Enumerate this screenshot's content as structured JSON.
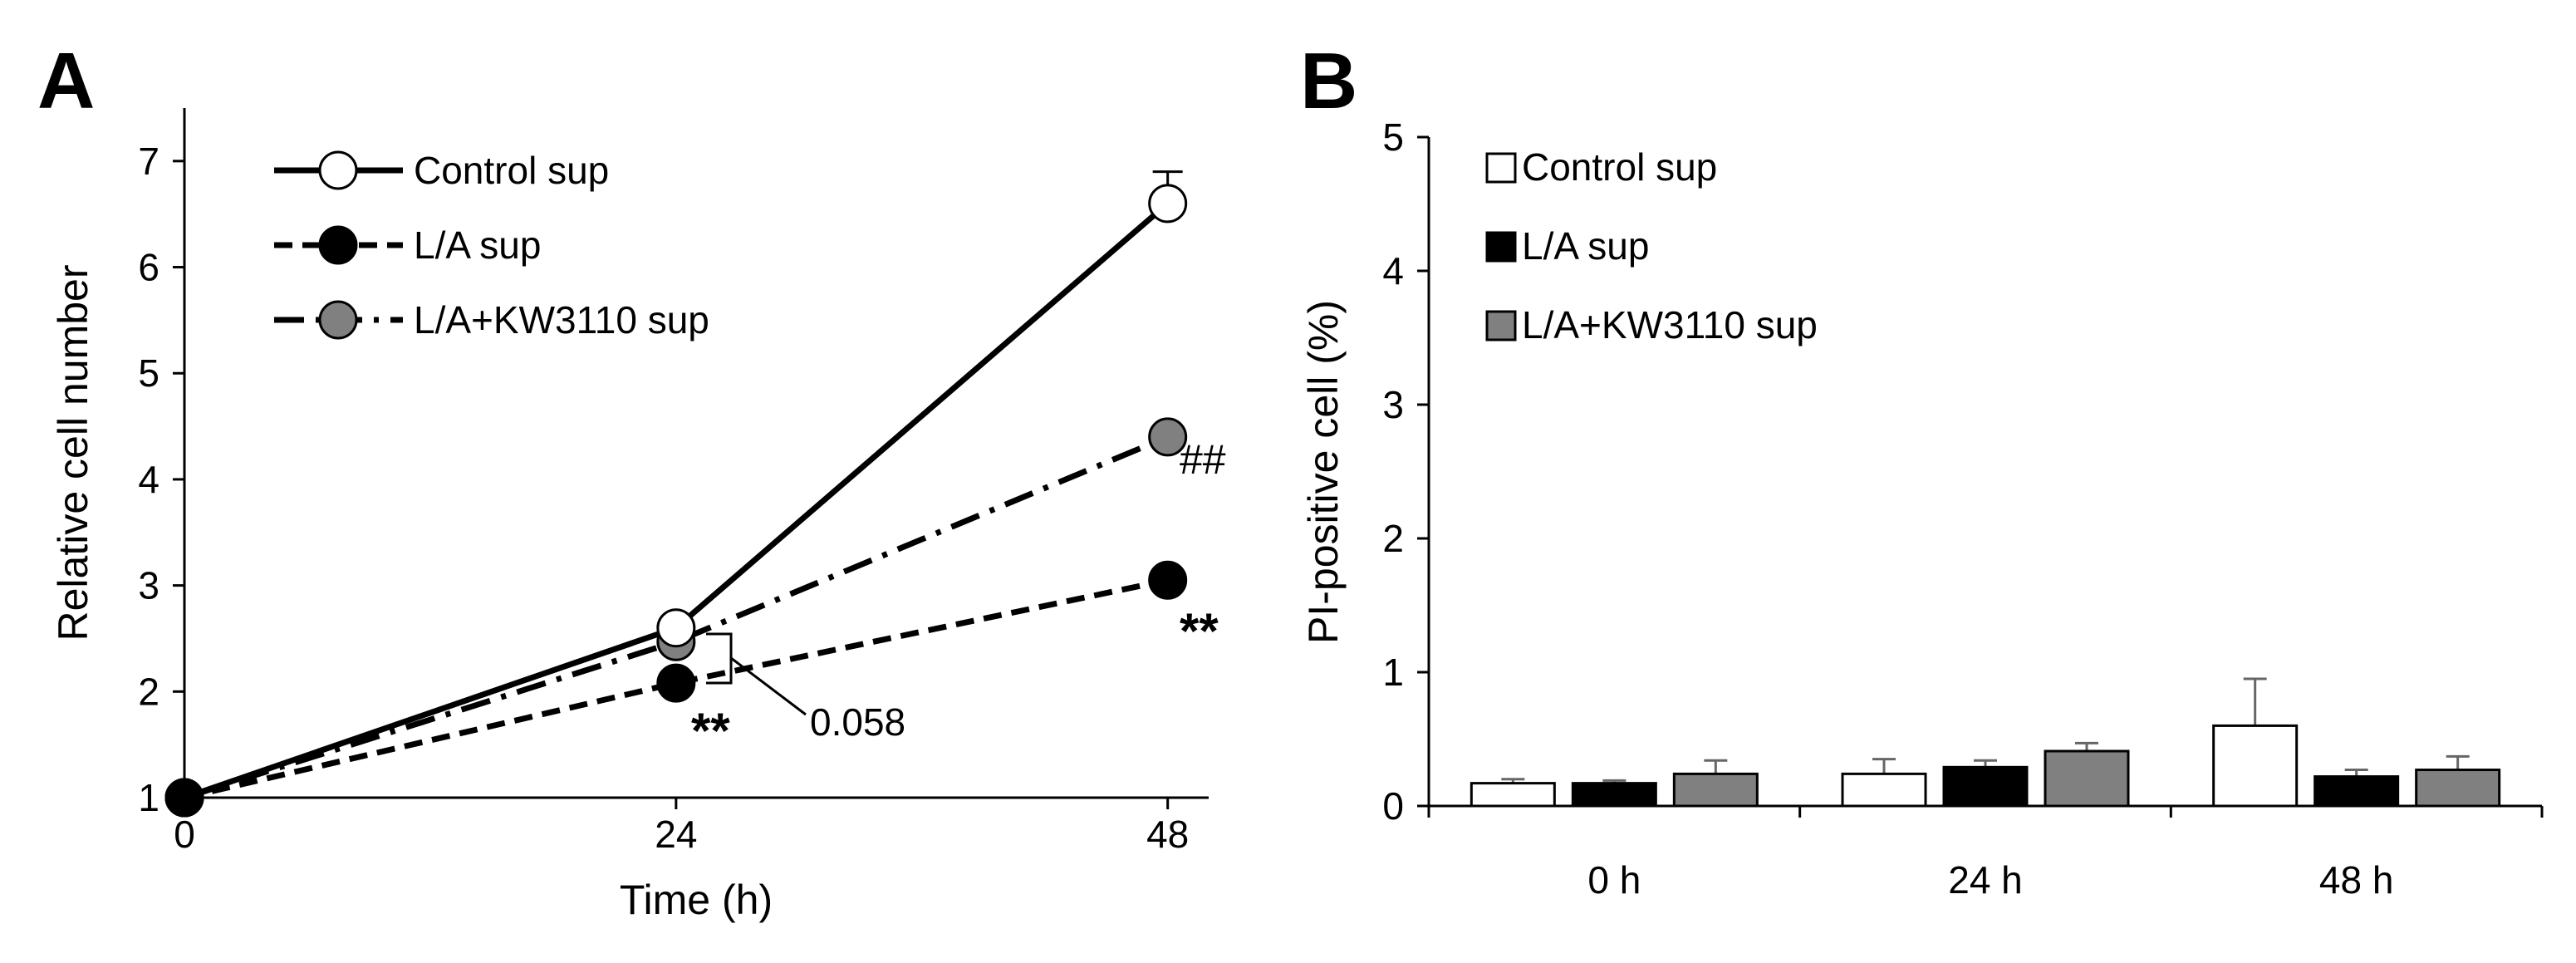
{
  "panels": {
    "a": "A",
    "b": "B"
  },
  "chart_data": [
    {
      "type": "line",
      "panel": "A",
      "xlabel": "Time (h)",
      "ylabel": "Relative cell number",
      "x": [
        0,
        24,
        48
      ],
      "x_ticks": [
        "0",
        "24",
        "48"
      ],
      "y_ticks": [
        "1",
        "2",
        "3",
        "4",
        "5",
        "6",
        "7"
      ],
      "xlim": [
        0,
        50
      ],
      "ylim": [
        1,
        7.5
      ],
      "series": [
        {
          "name": "Control sup",
          "values": [
            1.0,
            2.6,
            6.6
          ],
          "errors": [
            0,
            0,
            0.3
          ],
          "marker_fill": "#ffffff",
          "line": "solid"
        },
        {
          "name": "L/A sup",
          "values": [
            1.0,
            2.08,
            3.05
          ],
          "errors": [
            0,
            0,
            0.1
          ],
          "marker_fill": "#000000",
          "line": "dashed"
        },
        {
          "name": "L/A+KW3110 sup",
          "values": [
            1.0,
            2.47,
            4.4
          ],
          "errors": [
            0,
            0,
            0
          ],
          "marker_fill": "#808080",
          "line": "dashdot"
        }
      ],
      "annotations": {
        "star_24": "**",
        "star_48": "**",
        "hash_48": "##",
        "p_value": "0.058"
      }
    },
    {
      "type": "bar",
      "panel": "B",
      "xlabel": "",
      "ylabel": "PI-positive cell (%)",
      "categories": [
        "0 h",
        "24 h",
        "48 h"
      ],
      "y_ticks": [
        "0",
        "1",
        "2",
        "3",
        "4",
        "5"
      ],
      "ylim": [
        0,
        5
      ],
      "series": [
        {
          "name": "Control sup",
          "values": [
            0.17,
            0.24,
            0.6
          ],
          "errors": [
            0.03,
            0.11,
            0.35
          ],
          "color": "#ffffff"
        },
        {
          "name": "L/A sup",
          "values": [
            0.17,
            0.29,
            0.22
          ],
          "errors": [
            0.02,
            0.05,
            0.05
          ],
          "color": "#000000"
        },
        {
          "name": "L/A+KW3110 sup",
          "values": [
            0.24,
            0.41,
            0.27
          ],
          "errors": [
            0.1,
            0.06,
            0.1
          ],
          "color": "#808080"
        }
      ]
    }
  ]
}
